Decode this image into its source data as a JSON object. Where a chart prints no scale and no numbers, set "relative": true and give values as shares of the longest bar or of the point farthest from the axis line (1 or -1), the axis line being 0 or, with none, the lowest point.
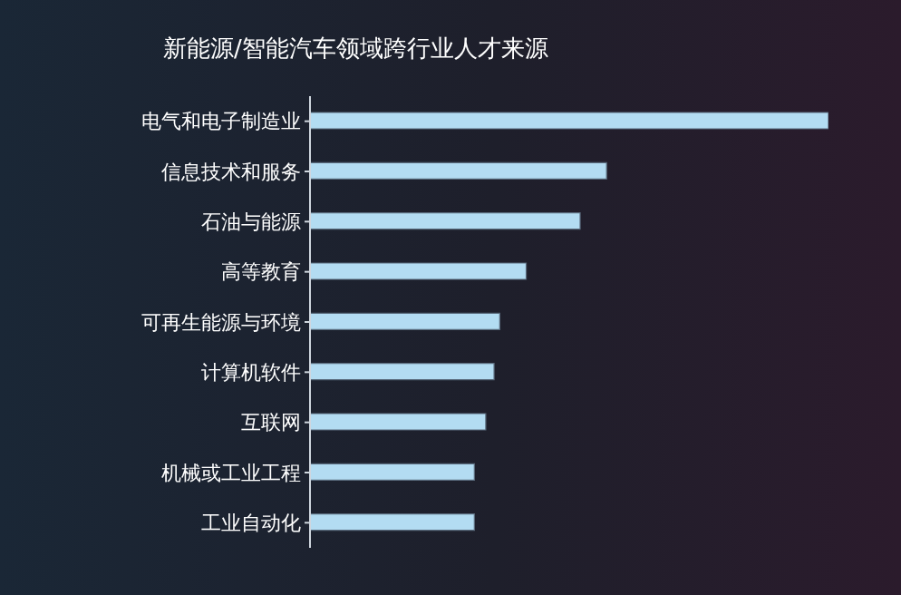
{
  "chart_data": {
    "type": "bar",
    "orientation": "horizontal",
    "relative": true,
    "title": "新能源/智能汽车领域跨行业人才来源",
    "categories": [
      "电气和电子制造业",
      "信息技术和服务",
      "石油与能源",
      "高等教育",
      "可再生能源与环境",
      "计算机软件",
      "互联网",
      "机械或工业工程",
      "工业自动化"
    ],
    "values": [
      1,
      0.572,
      0.521,
      0.417,
      0.366,
      0.355,
      0.339,
      0.317,
      0.317
    ],
    "color": "#b3dcf2",
    "grid": false,
    "legend": false
  }
}
